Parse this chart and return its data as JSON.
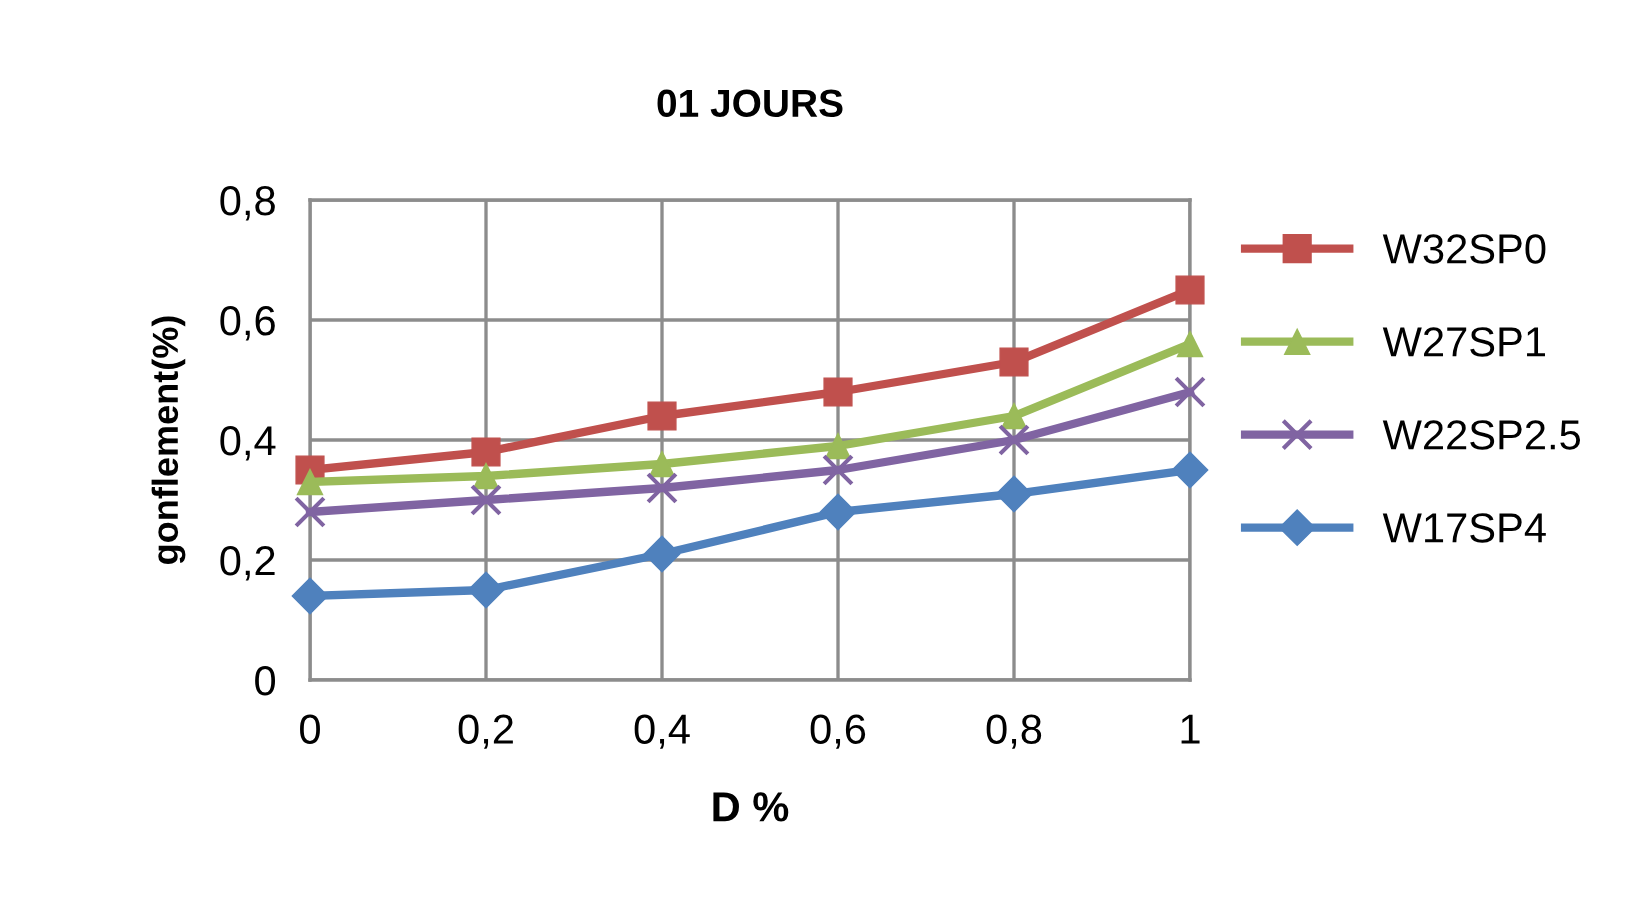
{
  "chart_data": {
    "type": "line",
    "title": "01 JOURS",
    "xlabel": "D %",
    "ylabel": "gonflement(%)",
    "x": [
      0,
      0.2,
      0.4,
      0.6,
      0.8,
      1
    ],
    "series": [
      {
        "name": "W32SP0",
        "color": "#c0504d",
        "marker": "square",
        "values": [
          0.35,
          0.38,
          0.44,
          0.48,
          0.53,
          0.65
        ]
      },
      {
        "name": "W27SP1",
        "color": "#9bbb59",
        "marker": "triangle",
        "values": [
          0.33,
          0.34,
          0.36,
          0.39,
          0.44,
          0.56
        ]
      },
      {
        "name": "W22SP2.5",
        "color": "#8064a2",
        "marker": "cross",
        "values": [
          0.28,
          0.3,
          0.32,
          0.35,
          0.4,
          0.48
        ]
      },
      {
        "name": "W17SP4",
        "color": "#4f81bd",
        "marker": "diamond",
        "values": [
          0.14,
          0.15,
          0.21,
          0.28,
          0.31,
          0.35
        ]
      }
    ],
    "xlim": [
      0,
      1
    ],
    "xticks": [
      0,
      {
        "value": 0.2,
        "label": "0,2"
      },
      {
        "value": 0.4,
        "label": "0,4"
      },
      {
        "value": 0.6,
        "label": "0,6"
      },
      {
        "value": 0.8,
        "label": "0,8"
      },
      1
    ],
    "ylim": [
      0,
      0.8
    ],
    "yticks": [
      0,
      {
        "value": 0.2,
        "label": "0,2"
      },
      {
        "value": 0.4,
        "label": "0,4"
      },
      {
        "value": 0.6,
        "label": "0,6"
      },
      {
        "value": 0.8,
        "label": "0,8"
      }
    ],
    "grid": true,
    "legend": "right"
  }
}
